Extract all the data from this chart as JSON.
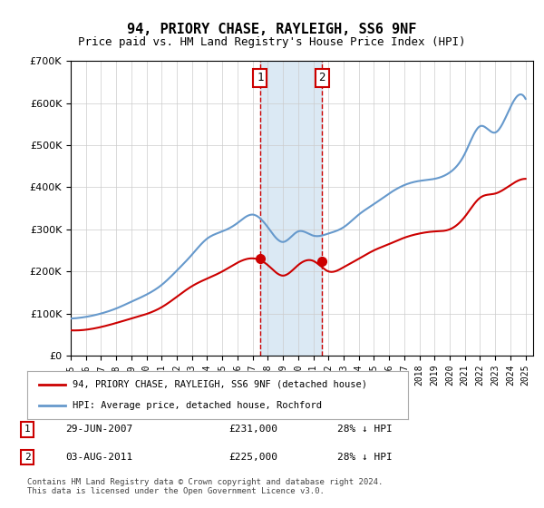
{
  "title": "94, PRIORY CHASE, RAYLEIGH, SS6 9NF",
  "subtitle": "Price paid vs. HM Land Registry's House Price Index (HPI)",
  "sale1_date": 2007.49,
  "sale1_price": 231000,
  "sale2_date": 2011.58,
  "sale2_price": 225000,
  "sale1_label": "1",
  "sale2_label": "2",
  "sale1_info": "29-JUN-2007",
  "sale1_amount": "£231,000",
  "sale1_hpi": "28% ↓ HPI",
  "sale2_info": "03-AUG-2011",
  "sale2_amount": "£225,000",
  "sale2_hpi": "28% ↓ HPI",
  "legend1": "94, PRIORY CHASE, RAYLEIGH, SS6 9NF (detached house)",
  "legend2": "HPI: Average price, detached house, Rochford",
  "footer": "Contains HM Land Registry data © Crown copyright and database right 2024.\nThis data is licensed under the Open Government Licence v3.0.",
  "red_color": "#cc0000",
  "blue_color": "#6699cc",
  "shade_color": "#cce0f0",
  "background_color": "#ffffff",
  "ylim": [
    0,
    700000
  ],
  "xlim": [
    1995,
    2025.5
  ]
}
